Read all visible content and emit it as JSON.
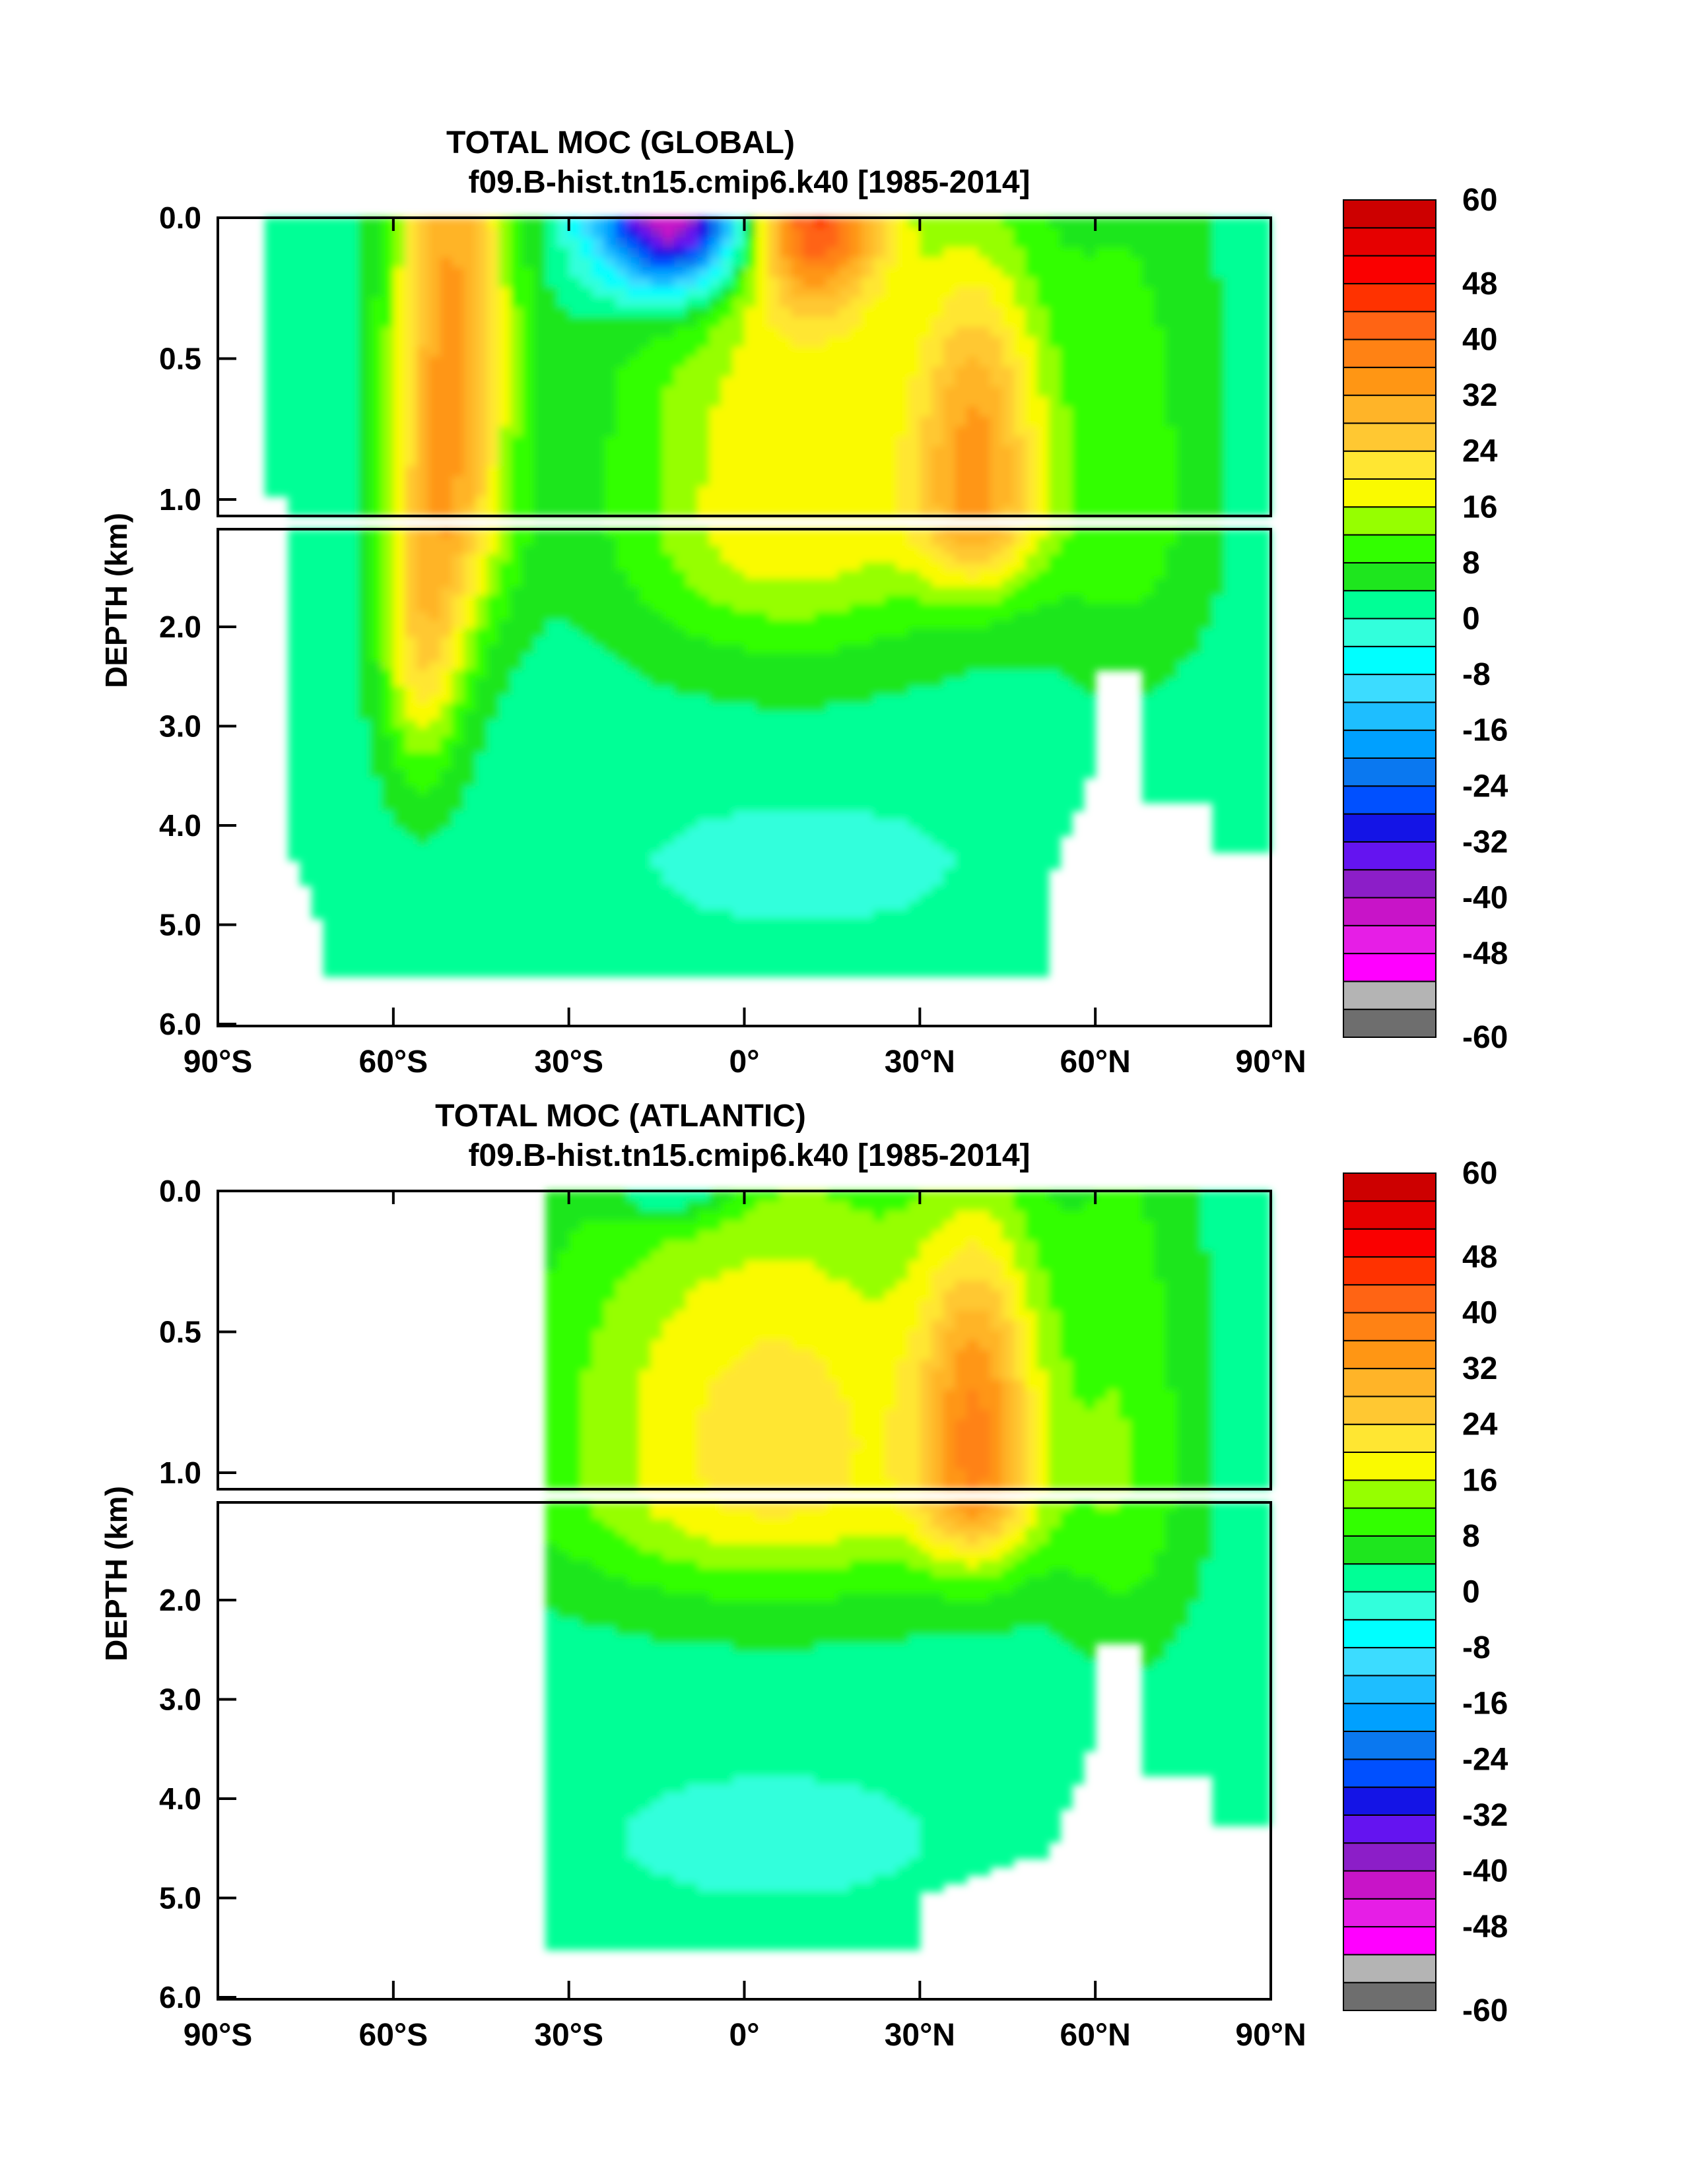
{
  "chart_data": [
    {
      "type": "contour",
      "title": "TOTAL MOC (GLOBAL)",
      "subtitle": "f09.B-hist.tn15.cmip6.k40 [1985-2014]",
      "ylabel": "DEPTH (km)",
      "xlim": [
        -90,
        90
      ],
      "ylim": [
        0,
        6
      ],
      "y_reversed": true,
      "x_ticks": [
        {
          "value": -90,
          "label": "90°S"
        },
        {
          "value": -60,
          "label": "60°S"
        },
        {
          "value": -30,
          "label": "30°S"
        },
        {
          "value": 0,
          "label": "0°"
        },
        {
          "value": 30,
          "label": "30°N"
        },
        {
          "value": 60,
          "label": "60°N"
        },
        {
          "value": 90,
          "label": "90°N"
        }
      ],
      "y_ticks_upper": [
        {
          "value": 0.0,
          "label": "0.0"
        },
        {
          "value": 0.5,
          "label": "0.5"
        },
        {
          "value": 1.0,
          "label": "1.0"
        }
      ],
      "y_ticks_lower": [
        {
          "value": 2.0,
          "label": "2.0"
        },
        {
          "value": 3.0,
          "label": "3.0"
        },
        {
          "value": 4.0,
          "label": "4.0"
        },
        {
          "value": 5.0,
          "label": "5.0"
        },
        {
          "value": 6.0,
          "label": "6.0"
        }
      ],
      "features": [
        {
          "name": "southern-ocean-cell",
          "center": [
            -50,
            0.15
          ],
          "value": 30
        },
        {
          "name": "southern-deep-cell",
          "center": [
            -55,
            2.0
          ],
          "value": 20
        },
        {
          "name": "southern-tropical-cell",
          "center": [
            -10,
            0.05
          ],
          "value": -50
        },
        {
          "name": "northern-tropical-cell",
          "center": [
            12,
            0.05
          ],
          "value": 34
        },
        {
          "name": "amoc-cell",
          "center": [
            40,
            0.85
          ],
          "value": 26
        },
        {
          "name": "abyssal-cell",
          "center": [
            10,
            4.3
          ],
          "value": -3
        }
      ]
    },
    {
      "type": "contour",
      "title": "TOTAL MOC (ATLANTIC)",
      "subtitle": "f09.B-hist.tn15.cmip6.k40 [1985-2014]",
      "ylabel": "DEPTH (km)",
      "xlim": [
        -90,
        90
      ],
      "ylim": [
        0,
        6
      ],
      "y_reversed": true,
      "x_ticks": [
        {
          "value": -90,
          "label": "90°S"
        },
        {
          "value": -60,
          "label": "60°S"
        },
        {
          "value": -30,
          "label": "30°S"
        },
        {
          "value": 0,
          "label": "0°"
        },
        {
          "value": 30,
          "label": "30°N"
        },
        {
          "value": 60,
          "label": "60°N"
        },
        {
          "value": 90,
          "label": "90°N"
        }
      ],
      "y_ticks_upper": [
        {
          "value": 0.0,
          "label": "0.0"
        },
        {
          "value": 0.5,
          "label": "0.5"
        },
        {
          "value": 1.0,
          "label": "1.0"
        }
      ],
      "y_ticks_lower": [
        {
          "value": 2.0,
          "label": "2.0"
        },
        {
          "value": 3.0,
          "label": "3.0"
        },
        {
          "value": 4.0,
          "label": "4.0"
        },
        {
          "value": 5.0,
          "label": "5.0"
        },
        {
          "value": 6.0,
          "label": "6.0"
        }
      ],
      "features": [
        {
          "name": "amoc-cell",
          "center": [
            40,
            0.85
          ],
          "value": 26
        },
        {
          "name": "south-atlantic-cell",
          "center": [
            -10,
            0.05
          ],
          "value": -8
        },
        {
          "name": "abyssal-cell",
          "center": [
            0,
            4.3
          ],
          "value": -3
        }
      ]
    }
  ],
  "colorbar": {
    "levels": [
      -60,
      -56,
      -52,
      -48,
      -44,
      -40,
      -36,
      -32,
      -28,
      -24,
      -20,
      -16,
      -12,
      -8,
      -4,
      0,
      4,
      8,
      12,
      16,
      20,
      24,
      28,
      32,
      36,
      40,
      44,
      48,
      52,
      56,
      60
    ],
    "colors": [
      "#6e6e6e",
      "#b4b4b4",
      "#ff00ff",
      "#e61ee6",
      "#c814c8",
      "#8c1ec8",
      "#6414f0",
      "#1414e6",
      "#0050ff",
      "#0a78f0",
      "#00a0ff",
      "#1ebeff",
      "#3cdcff",
      "#00ffff",
      "#32ffdc",
      "#00ff96",
      "#1ee61e",
      "#32ff00",
      "#96ff00",
      "#fafa00",
      "#ffe632",
      "#ffc832",
      "#ffb428",
      "#ff9614",
      "#ff8214",
      "#ff6414",
      "#ff3200",
      "#fa0000",
      "#e60000",
      "#cd0000"
    ],
    "labels": [
      "60",
      "48",
      "40",
      "32",
      "24",
      "16",
      "8",
      "0",
      "-8",
      "-16",
      "-24",
      "-32",
      "-40",
      "-48",
      "-60"
    ],
    "label_values": [
      60,
      48,
      40,
      32,
      24,
      16,
      8,
      0,
      -8,
      -16,
      -24,
      -32,
      -40,
      -48,
      -60
    ]
  }
}
